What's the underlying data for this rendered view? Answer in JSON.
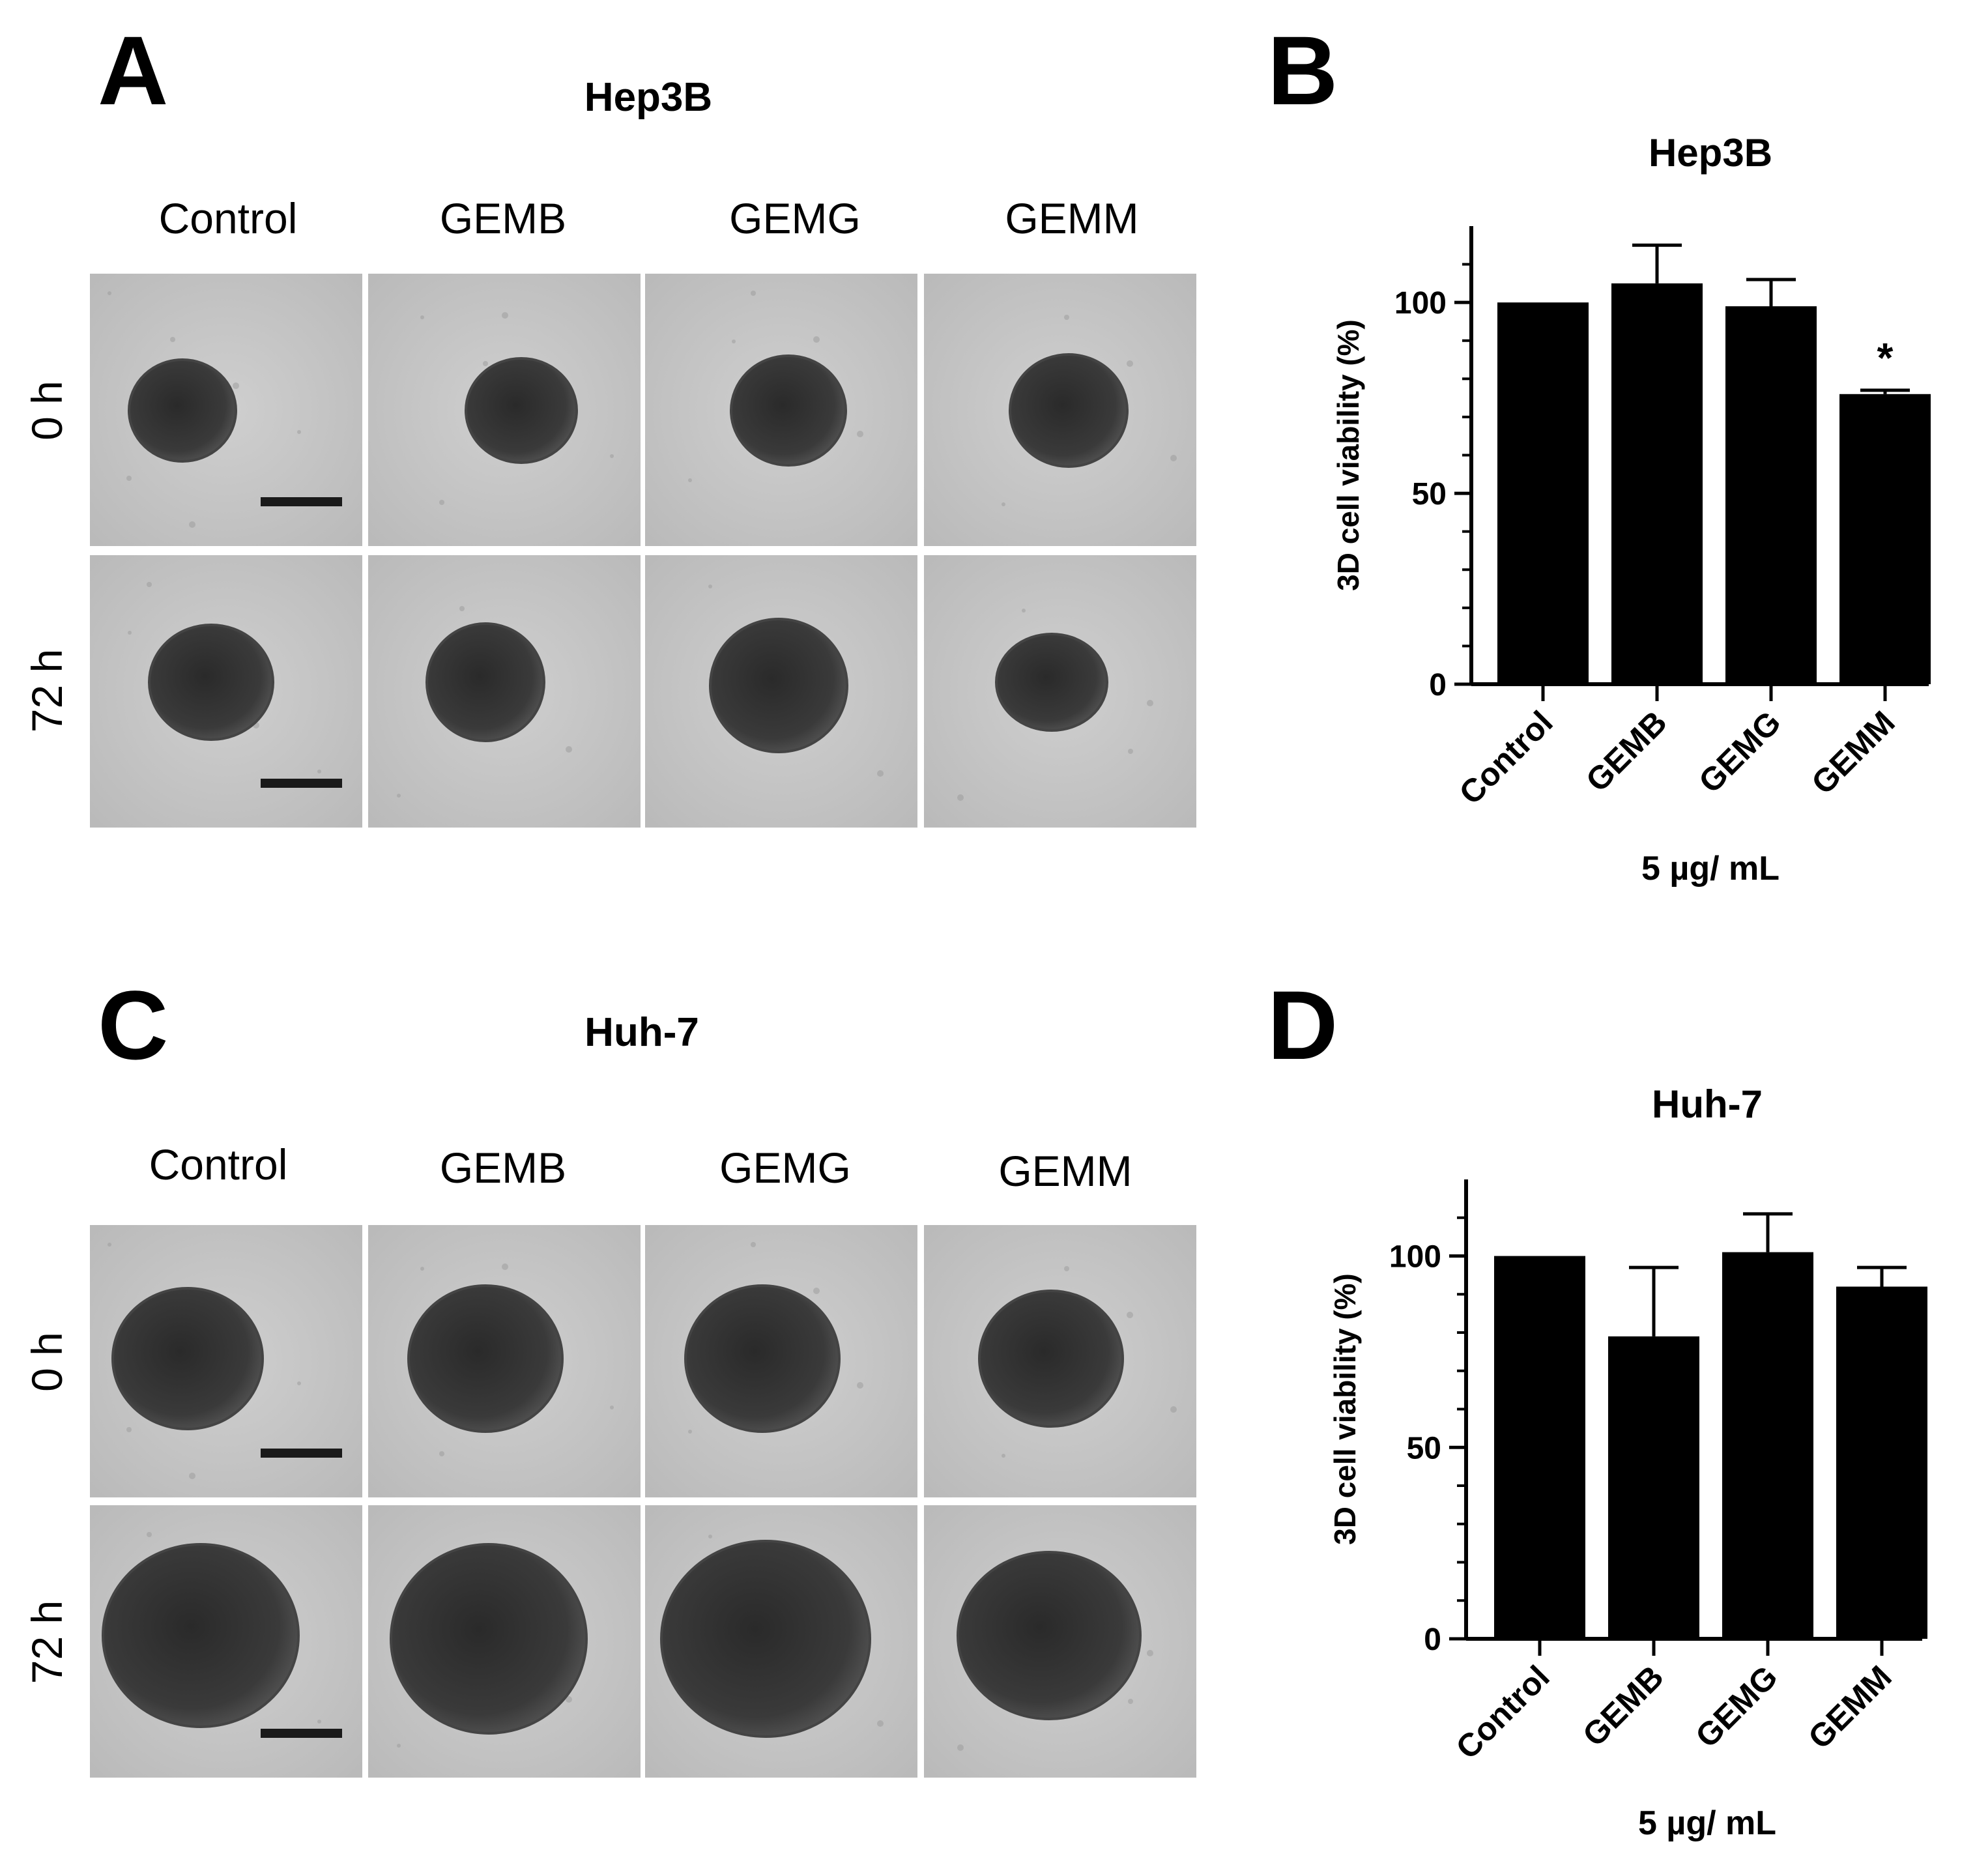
{
  "colors": {
    "bar": "#000000",
    "image_bg": "#c4c4c4",
    "spheroid": "#2e2e2e",
    "scale_bar": "#1a1a1a"
  },
  "panels": {
    "A": {
      "letter": "A",
      "title": "Hep3B",
      "columns": [
        "Control",
        "GEMB",
        "GEMG",
        "GEMM"
      ],
      "rows": [
        "0 h",
        "72 h"
      ]
    },
    "C": {
      "letter": "C",
      "title": "Huh-7",
      "columns": [
        "Control",
        "GEMB",
        "GEMG",
        "GEMM"
      ],
      "rows": [
        "0 h",
        "72 h"
      ]
    },
    "B": {
      "letter": "B"
    },
    "D": {
      "letter": "D"
    }
  },
  "chart_data": [
    {
      "panel": "B",
      "type": "bar",
      "title": "Hep3B",
      "categories": [
        "Control",
        "GEMB",
        "GEMG",
        "GEMM"
      ],
      "values": [
        100,
        105,
        99,
        76
      ],
      "errors": [
        0,
        10,
        7,
        1
      ],
      "significance": [
        "",
        "",
        "",
        "*"
      ],
      "ylabel": "3D cell viability (%)",
      "xlabel": "5 µg/ mL",
      "ylim": [
        0,
        120
      ],
      "yticks": [
        0,
        50,
        100
      ]
    },
    {
      "panel": "D",
      "type": "bar",
      "title": "Huh-7",
      "categories": [
        "Control",
        "GEMB",
        "GEMG",
        "GEMM"
      ],
      "values": [
        100,
        79,
        101,
        92
      ],
      "errors": [
        0,
        18,
        10,
        5
      ],
      "significance": [
        "",
        "",
        "",
        ""
      ],
      "ylabel": "3D cell viability (%)",
      "xlabel": "5 µg/ mL",
      "ylim": [
        0,
        120
      ],
      "yticks": [
        0,
        50,
        100
      ]
    }
  ]
}
